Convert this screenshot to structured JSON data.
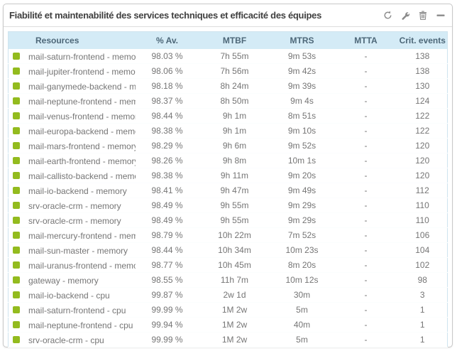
{
  "widget": {
    "title": "Fiabilité et maintenabilité des services techniques et efficacité des équipes",
    "toolbar": {
      "refresh": "refresh",
      "configure": "configure",
      "delete": "delete",
      "collapse": "collapse"
    }
  },
  "colors": {
    "header_bg": "#d4ebf6",
    "header_text": "#4d6778",
    "table_border": "#cfe4ef",
    "row_text": "#757575",
    "status_ok": "#93bb1e",
    "icon_gray": "#8a8a8a",
    "widget_border": "#c9c9c9",
    "title_text": "#404040"
  },
  "table": {
    "columns": [
      "Resources",
      "% Av.",
      "MTBF",
      "MTRS",
      "MTTA",
      "Crit. events"
    ],
    "row_keys": [
      "resource",
      "availability",
      "mtbf",
      "mtrs",
      "mtta",
      "crit_events"
    ],
    "rows": [
      {
        "status_color": "#93bb1e",
        "resource": "mail-saturn-frontend - memory",
        "availability": "98.03 %",
        "mtbf": "7h 55m",
        "mtrs": "9m 53s",
        "mtta": "-",
        "crit_events": "138"
      },
      {
        "status_color": "#93bb1e",
        "resource": "mail-jupiter-frontend - memory",
        "availability": "98.06 %",
        "mtbf": "7h 56m",
        "mtrs": "9m 42s",
        "mtta": "-",
        "crit_events": "138"
      },
      {
        "status_color": "#93bb1e",
        "resource": "mail-ganymede-backend - memory",
        "availability": "98.18 %",
        "mtbf": "8h 24m",
        "mtrs": "9m 39s",
        "mtta": "-",
        "crit_events": "130"
      },
      {
        "status_color": "#93bb1e",
        "resource": "mail-neptune-frontend - memory",
        "availability": "98.37 %",
        "mtbf": "8h 50m",
        "mtrs": "9m 4s",
        "mtta": "-",
        "crit_events": "124"
      },
      {
        "status_color": "#93bb1e",
        "resource": "mail-venus-frontend - memory",
        "availability": "98.44 %",
        "mtbf": "9h 1m",
        "mtrs": "8m 51s",
        "mtta": "-",
        "crit_events": "122"
      },
      {
        "status_color": "#93bb1e",
        "resource": "mail-europa-backend - memory",
        "availability": "98.38 %",
        "mtbf": "9h 1m",
        "mtrs": "9m 10s",
        "mtta": "-",
        "crit_events": "122"
      },
      {
        "status_color": "#93bb1e",
        "resource": "mail-mars-frontend - memory",
        "availability": "98.29 %",
        "mtbf": "9h 6m",
        "mtrs": "9m 52s",
        "mtta": "-",
        "crit_events": "120"
      },
      {
        "status_color": "#93bb1e",
        "resource": "mail-earth-frontend - memory",
        "availability": "98.26 %",
        "mtbf": "9h 8m",
        "mtrs": "10m 1s",
        "mtta": "-",
        "crit_events": "120"
      },
      {
        "status_color": "#93bb1e",
        "resource": "mail-callisto-backend - memory",
        "availability": "98.38 %",
        "mtbf": "9h 11m",
        "mtrs": "9m 20s",
        "mtta": "-",
        "crit_events": "120"
      },
      {
        "status_color": "#93bb1e",
        "resource": "mail-io-backend - memory",
        "availability": "98.41 %",
        "mtbf": "9h 47m",
        "mtrs": "9m 49s",
        "mtta": "-",
        "crit_events": "112"
      },
      {
        "status_color": "#93bb1e",
        "resource": "srv-oracle-crm - memory",
        "availability": "98.49 %",
        "mtbf": "9h 55m",
        "mtrs": "9m 29s",
        "mtta": "-",
        "crit_events": "110"
      },
      {
        "status_color": "#93bb1e",
        "resource": "srv-oracle-crm - memory",
        "availability": "98.49 %",
        "mtbf": "9h 55m",
        "mtrs": "9m 29s",
        "mtta": "-",
        "crit_events": "110"
      },
      {
        "status_color": "#93bb1e",
        "resource": "mail-mercury-frontend - memory",
        "availability": "98.79 %",
        "mtbf": "10h 22m",
        "mtrs": "7m 52s",
        "mtta": "-",
        "crit_events": "106"
      },
      {
        "status_color": "#93bb1e",
        "resource": "mail-sun-master - memory",
        "availability": "98.44 %",
        "mtbf": "10h 34m",
        "mtrs": "10m 23s",
        "mtta": "-",
        "crit_events": "104"
      },
      {
        "status_color": "#93bb1e",
        "resource": "mail-uranus-frontend - memory",
        "availability": "98.77 %",
        "mtbf": "10h 45m",
        "mtrs": "8m 20s",
        "mtta": "-",
        "crit_events": "102"
      },
      {
        "status_color": "#93bb1e",
        "resource": "gateway - memory",
        "availability": "98.55 %",
        "mtbf": "11h 7m",
        "mtrs": "10m 12s",
        "mtta": "-",
        "crit_events": "98"
      },
      {
        "status_color": "#93bb1e",
        "resource": "mail-io-backend - cpu",
        "availability": "99.87 %",
        "mtbf": "2w 1d",
        "mtrs": "30m",
        "mtta": "-",
        "crit_events": "3"
      },
      {
        "status_color": "#93bb1e",
        "resource": "mail-saturn-frontend - cpu",
        "availability": "99.99 %",
        "mtbf": "1M 2w",
        "mtrs": "5m",
        "mtta": "-",
        "crit_events": "1"
      },
      {
        "status_color": "#93bb1e",
        "resource": "mail-neptune-frontend - cpu",
        "availability": "99.94 %",
        "mtbf": "1M 2w",
        "mtrs": "40m",
        "mtta": "-",
        "crit_events": "1"
      },
      {
        "status_color": "#93bb1e",
        "resource": "srv-oracle-crm - cpu",
        "availability": "99.99 %",
        "mtbf": "1M 2w",
        "mtrs": "5m",
        "mtta": "-",
        "crit_events": "1"
      }
    ]
  }
}
